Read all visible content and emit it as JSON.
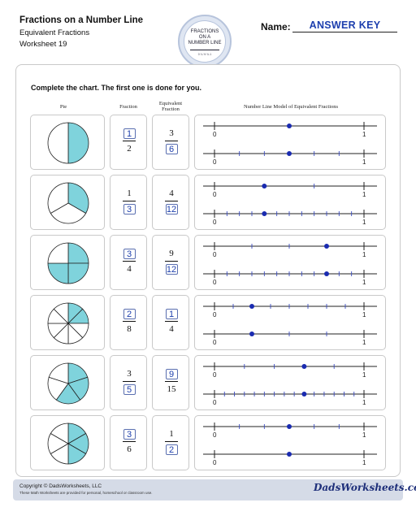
{
  "header": {
    "title": "Fractions on a Number Line",
    "subtitle": "Equivalent Fractions",
    "worksheet": "Worksheet 19",
    "badge_text": [
      "FRACTIONS",
      "ON A",
      "NUMBER LINE"
    ],
    "badge_ticks": "0   ¼   ½   ¾   1",
    "name_label": "Name:",
    "name_value": "ANSWER KEY"
  },
  "instructions": "Complete the chart. The first one is done for you.",
  "columns": {
    "pie": "Pie",
    "fraction": "Fraction",
    "equivalent": [
      "Equivalent",
      "Fraction"
    ],
    "model": "Number Line Model of Equivalent Fractions"
  },
  "number_line_labels": {
    "zero": "0",
    "one": "1"
  },
  "rows": [
    {
      "pie": {
        "parts": 2,
        "shaded": 1
      },
      "fraction": {
        "num": "1",
        "den": "2",
        "answer": "num"
      },
      "equivalent": {
        "num": "3",
        "den": "6",
        "answer": "den"
      },
      "line1": {
        "divs": 2,
        "value": 0.5
      },
      "line2": {
        "divs": 6,
        "value": 0.5
      }
    },
    {
      "pie": {
        "parts": 3,
        "shaded": 1
      },
      "fraction": {
        "num": "1",
        "den": "3",
        "answer": "den"
      },
      "equivalent": {
        "num": "4",
        "den": "12",
        "answer": "den"
      },
      "line1": {
        "divs": 3,
        "value": 0.3333
      },
      "line2": {
        "divs": 12,
        "value": 0.3333
      }
    },
    {
      "pie": {
        "parts": 4,
        "shaded": 3
      },
      "fraction": {
        "num": "3",
        "den": "4",
        "answer": "num"
      },
      "equivalent": {
        "num": "9",
        "den": "12",
        "answer": "den"
      },
      "line1": {
        "divs": 4,
        "value": 0.75
      },
      "line2": {
        "divs": 12,
        "value": 0.75
      }
    },
    {
      "pie": {
        "parts": 8,
        "shaded": 2
      },
      "fraction": {
        "num": "2",
        "den": "8",
        "answer": "num"
      },
      "equivalent": {
        "num": "1",
        "den": "4",
        "answer": "num"
      },
      "line1": {
        "divs": 8,
        "value": 0.25
      },
      "line2": {
        "divs": 4,
        "value": 0.25
      }
    },
    {
      "pie": {
        "parts": 5,
        "shaded": 3
      },
      "fraction": {
        "num": "3",
        "den": "5",
        "answer": "den"
      },
      "equivalent": {
        "num": "9",
        "den": "15",
        "answer": "num"
      },
      "line1": {
        "divs": 5,
        "value": 0.6
      },
      "line2": {
        "divs": 15,
        "value": 0.6
      }
    },
    {
      "pie": {
        "parts": 6,
        "shaded": 3
      },
      "fraction": {
        "num": "3",
        "den": "6",
        "answer": "num"
      },
      "equivalent": {
        "num": "1",
        "den": "2",
        "answer": "den"
      },
      "line1": {
        "divs": 6,
        "value": 0.5
      },
      "line2": {
        "divs": 2,
        "value": 0.5
      }
    }
  ],
  "colors": {
    "pie_fill": "#7fd3dc",
    "answer": "#1d3fae",
    "dot": "#1a2bb0"
  },
  "footer": {
    "copyright": "Copyright © DadsWorksheets, LLC",
    "note": "These Math Worksheets are provided for personal, homeschool or classroom use.",
    "logo": "DadsWorksheets.com"
  }
}
